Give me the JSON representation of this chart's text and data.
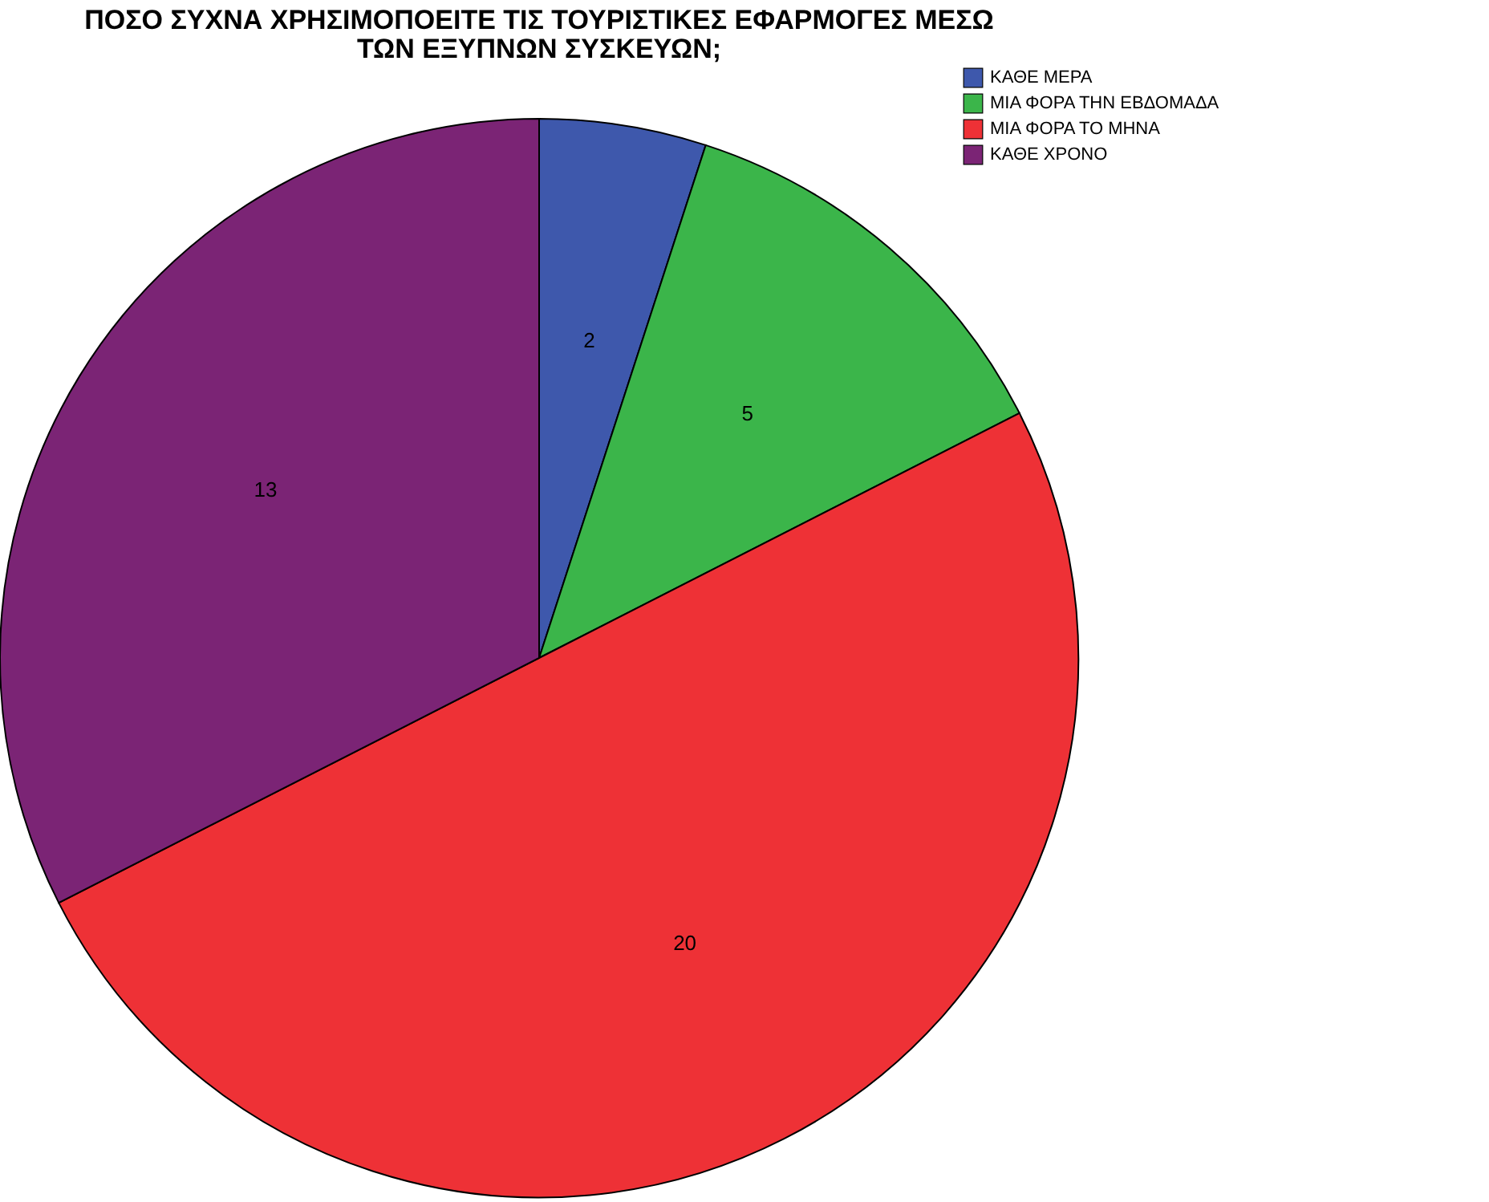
{
  "chart_data": {
    "type": "pie",
    "title": "ΠΟΣΟ ΣΥΧΝΑ ΧΡΗΣΙΜΟΠΟΕΙΤΕ ΤΙΣ ΤΟΥΡΙΣΤΙΚΕΣ ΕΦΑΡΜΟΓΕΣ ΜΕΣΩ ΤΩΝ ΕΞΥΠΝΩΝ ΣΥΣΚΕΥΩΝ;",
    "categories": [
      "ΚΑΘΕ ΜΕΡΑ",
      "ΜΙΑ ΦΟΡΑ ΤΗΝ ΕΒΔΟΜΑΔΑ",
      "ΜΙΑ ΦΟΡΑ ΤΟ ΜΗΝΑ",
      "ΚΑΘΕ ΧΡΟΝΟ"
    ],
    "values": [
      2,
      5,
      20,
      13
    ],
    "colors": [
      "#3e58ac",
      "#3bb54a",
      "#ee3136",
      "#7b2475"
    ],
    "data_labels": true,
    "legend": "top right"
  }
}
